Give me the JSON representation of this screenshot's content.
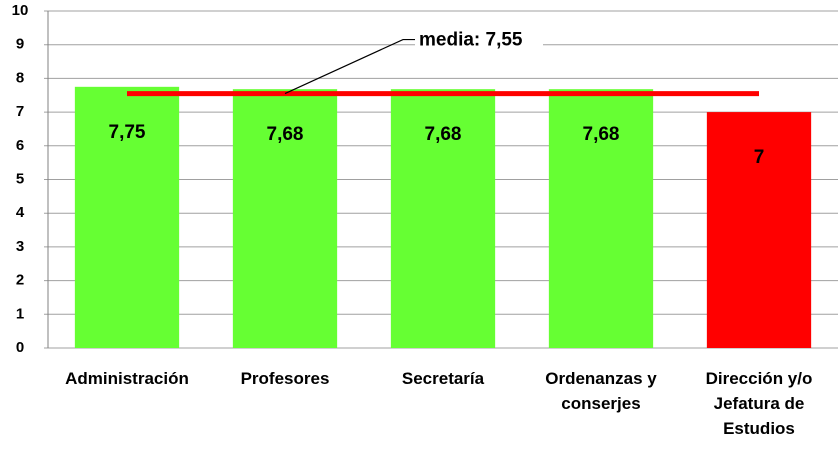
{
  "chart_data": {
    "type": "bar",
    "categories": [
      "Administración",
      "Profesores",
      "Secretaría",
      "Ordenanzas y conserjes",
      "Dirección y/o Jefatura de Estudios"
    ],
    "values": [
      7.75,
      7.68,
      7.68,
      7.68,
      7
    ],
    "value_labels": [
      "7,75",
      "7,68",
      "7,68",
      "7,68",
      "7"
    ],
    "colors": [
      "#66ff33",
      "#66ff33",
      "#66ff33",
      "#66ff33",
      "#ff0000"
    ],
    "ylim": [
      0,
      10
    ],
    "yticks": [
      0,
      1,
      2,
      3,
      4,
      5,
      6,
      7,
      8,
      9,
      10
    ],
    "grid": true,
    "mean": {
      "value": 7.55,
      "label": "media: 7,55",
      "color": "#ff0000"
    }
  }
}
